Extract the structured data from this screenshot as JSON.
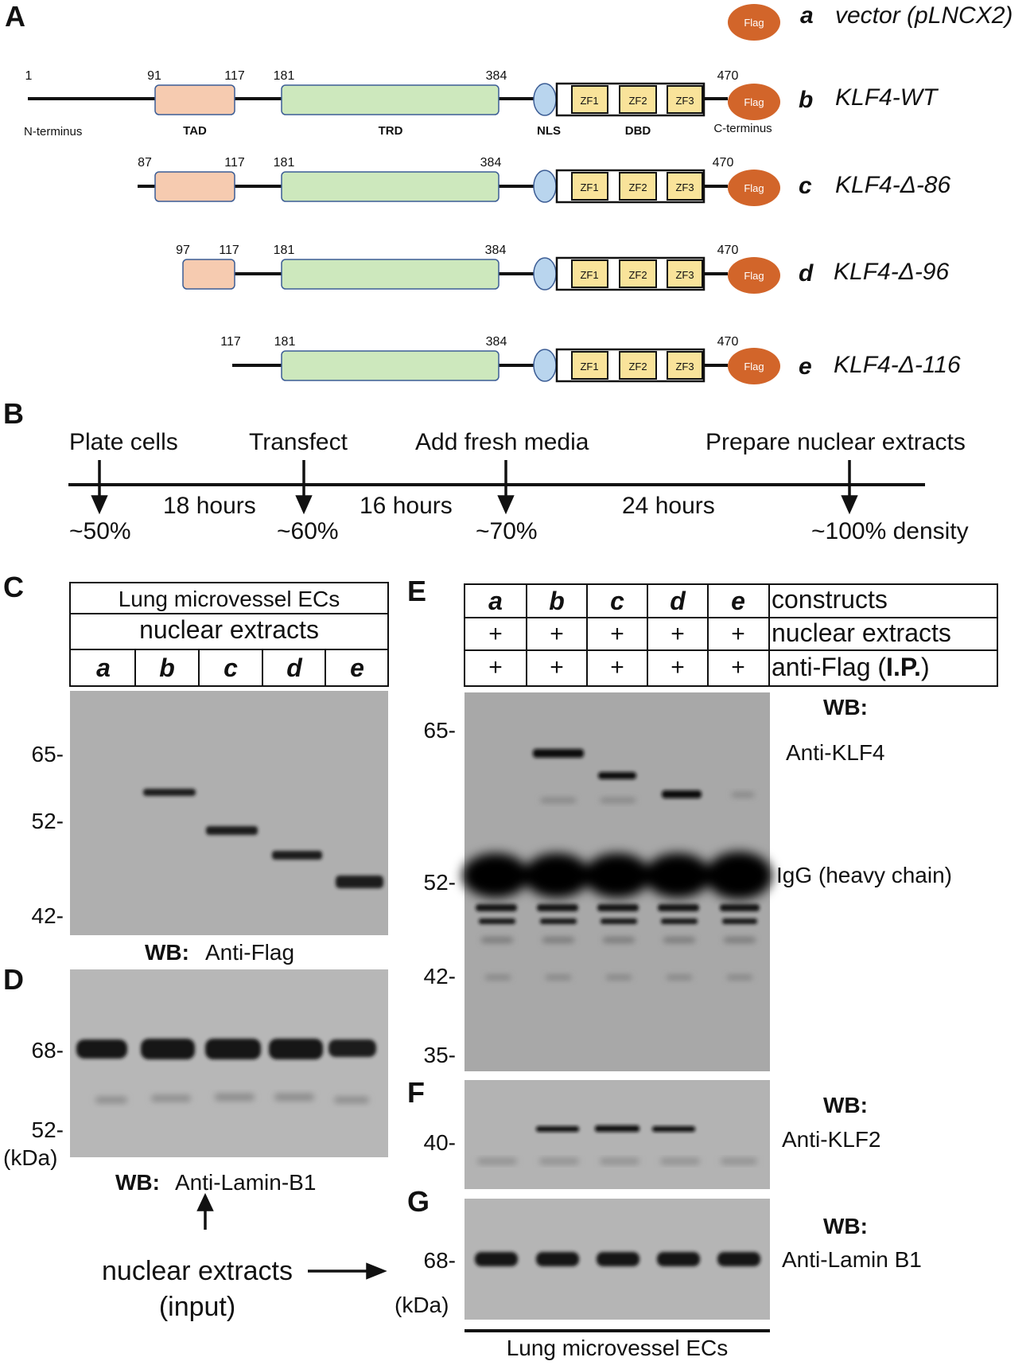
{
  "panel_a": {
    "letter": "A",
    "constructs": [
      {
        "letter": "a",
        "name": "vector (pLNCX2)",
        "tag": "Flag"
      },
      {
        "letter": "b",
        "name": "KLF4-WT",
        "start": "1",
        "tad_start": "91",
        "tad_end": "117",
        "trd_start": "181",
        "trd_end": "384",
        "end": "470"
      },
      {
        "letter": "c",
        "name": "KLF4-Δ-86",
        "start": "87",
        "tad_end": "117",
        "trd_start": "181",
        "trd_end": "384",
        "end": "470"
      },
      {
        "letter": "d",
        "name": "KLF4-Δ-96",
        "start": "97",
        "tad_end": "117",
        "trd_start": "181",
        "trd_end": "384",
        "end": "470"
      },
      {
        "letter": "e",
        "name": "KLF4-Δ-116",
        "start": "117",
        "trd_start": "181",
        "trd_end": "384",
        "end": "470"
      }
    ],
    "domain_labels": {
      "n_term": "N-terminus",
      "tad": "TAD",
      "trd": "TRD",
      "nls": "NLS",
      "dbd": "DBD",
      "c_term": "C-terminus"
    },
    "zf": [
      "ZF1",
      "ZF2",
      "ZF3"
    ],
    "tag": "Flag",
    "colors": {
      "tad": "#f6cbb0",
      "trd": "#cde8bd",
      "nls": "#b9d5ee",
      "zf": "#f9e39a",
      "flag": "#d2652a",
      "outline": "#3c5d95"
    }
  },
  "panel_b": {
    "letter": "B",
    "steps": [
      "Plate cells",
      "Transfect",
      "Add fresh media",
      "Prepare nuclear extracts"
    ],
    "intervals": [
      "18 hours",
      "16 hours",
      "24 hours"
    ],
    "densities": [
      "~50%",
      "~60%",
      "~70%",
      "~100% density"
    ]
  },
  "panel_c": {
    "letter": "C",
    "header1": "Lung microvessel ECs",
    "header2": "nuclear extracts",
    "lanes": [
      "a",
      "b",
      "c",
      "d",
      "e"
    ],
    "markers": [
      "65-",
      "52-",
      "42-"
    ],
    "wb_prefix": "WB:",
    "wb_label": "Anti-Flag"
  },
  "panel_d": {
    "letter": "D",
    "markers": [
      "68-",
      "52-"
    ],
    "unit": "(kDa)",
    "wb_prefix": "WB:",
    "wb_label": "Anti-Lamin-B1"
  },
  "input_note": {
    "line1": "nuclear extracts",
    "line2": "(input)"
  },
  "panel_e": {
    "letter": "E",
    "lanes": [
      "a",
      "b",
      "c",
      "d",
      "e"
    ],
    "row_constructs": "constructs",
    "row_nuclear": "nuclear extracts",
    "row_ip_prefix": "anti-Flag (",
    "row_ip_bold": "I.P.",
    "row_ip_suffix": ")",
    "plus": "+",
    "markers": [
      "65-",
      "52-",
      "42-",
      "35-"
    ],
    "wb_prefix": "WB:",
    "wb_label": "Anti-KLF4",
    "igg": "IgG (heavy chain)"
  },
  "panel_f": {
    "letter": "F",
    "markers": [
      "40-"
    ],
    "wb_prefix": "WB:",
    "wb_label": "Anti-KLF2"
  },
  "panel_g": {
    "letter": "G",
    "markers": [
      "68-"
    ],
    "unit": "(kDa)",
    "wb_prefix": "WB:",
    "wb_label": "Anti-Lamin B1",
    "footer": "Lung microvessel ECs"
  }
}
